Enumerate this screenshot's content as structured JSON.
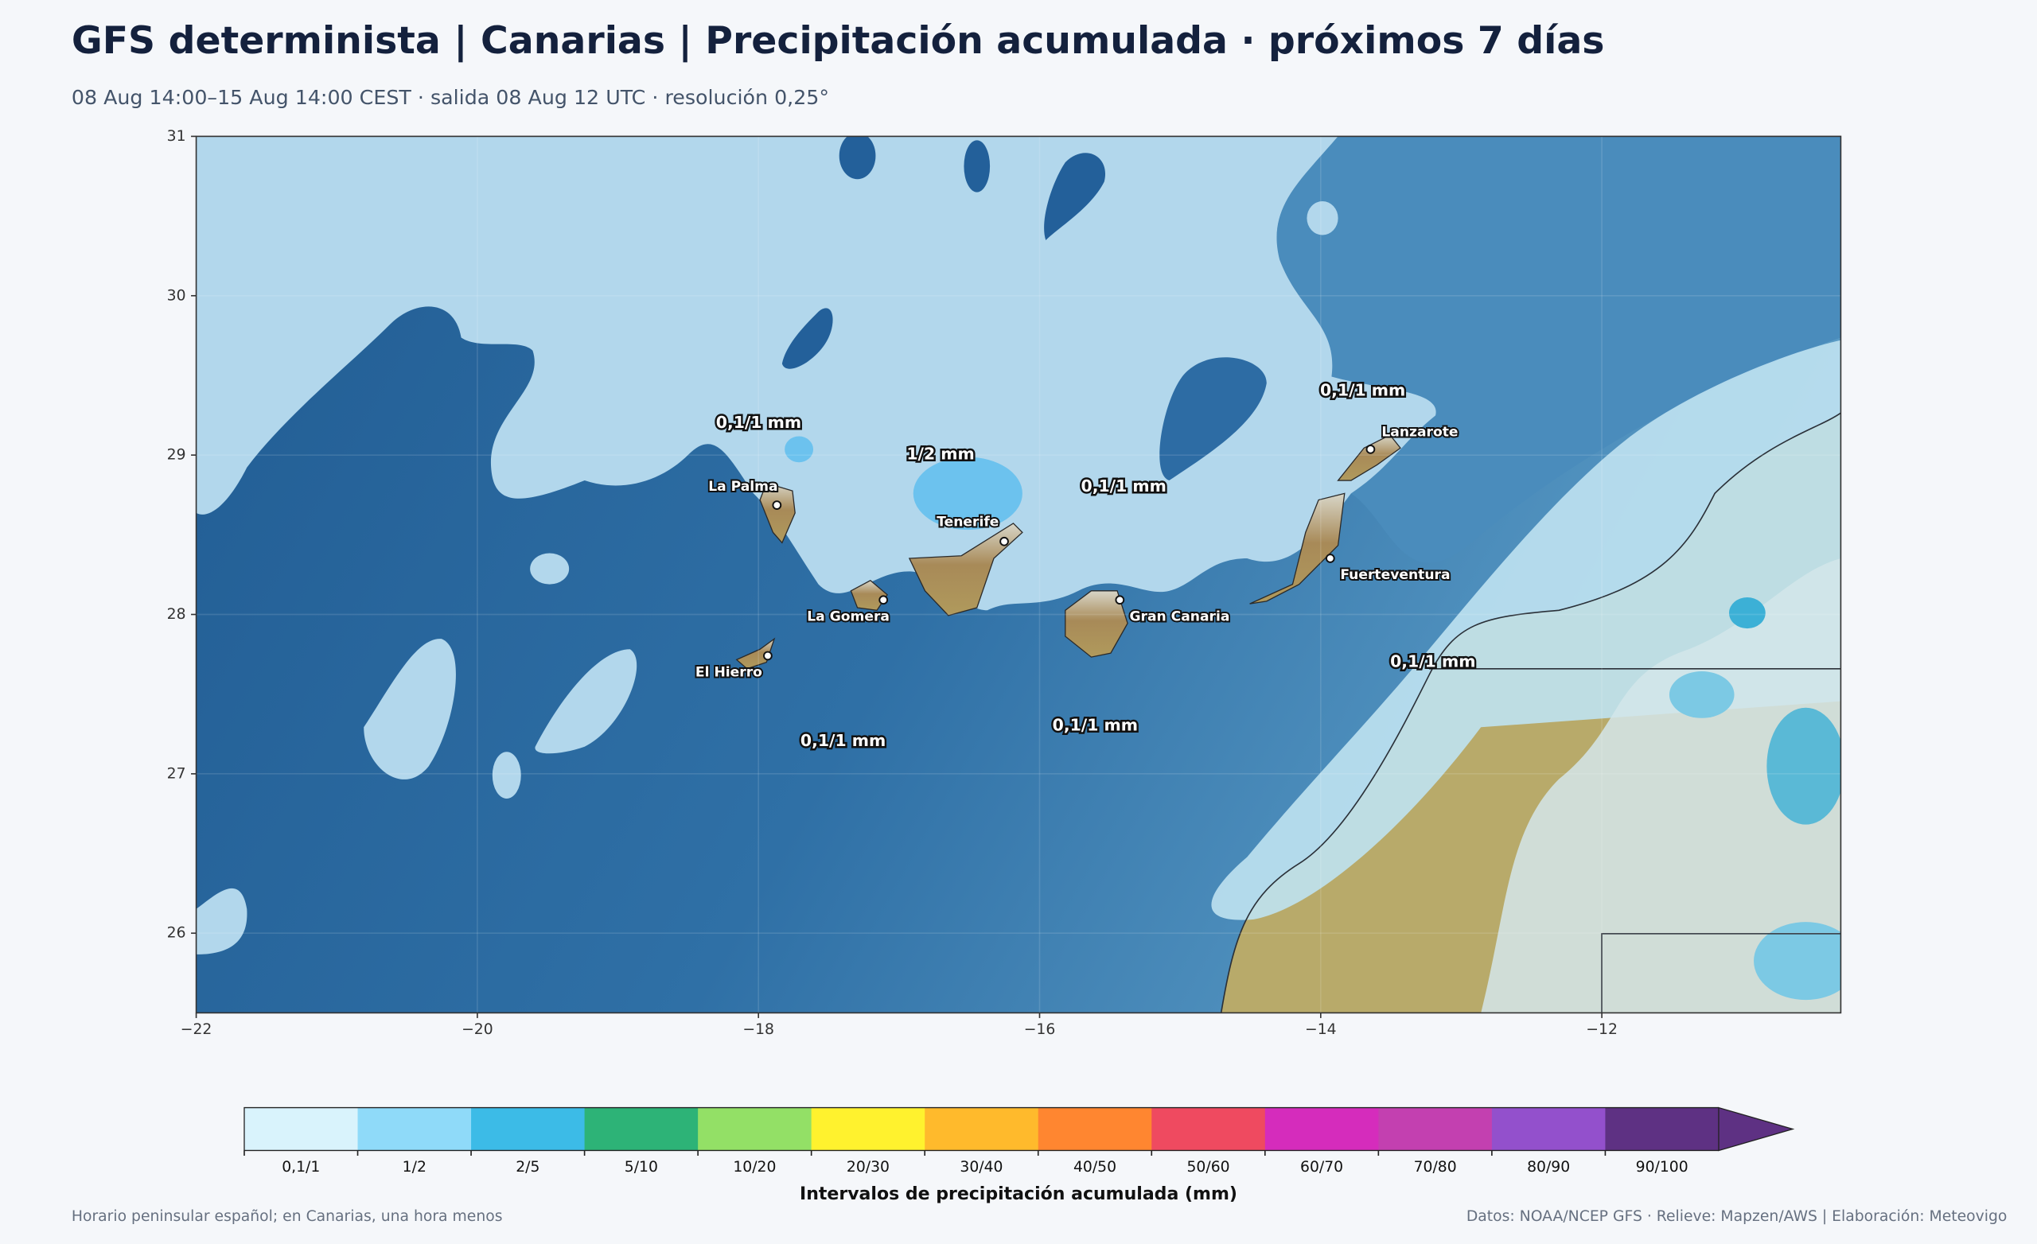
{
  "header": {
    "title": "GFS determinista | Canarias | Precipitación acumulada · próximos 7 días",
    "subtitle": "08 Aug 14:00–15 Aug 14:00 CEST · salida 08 Aug 12 UTC · resolución 0,25°"
  },
  "map": {
    "xlim": [
      -22,
      -10.3
    ],
    "ylim": [
      25.5,
      31
    ],
    "xticks": [
      {
        "value": -22,
        "label": "−22"
      },
      {
        "value": -20,
        "label": "−20"
      },
      {
        "value": -18,
        "label": "−18"
      },
      {
        "value": -16,
        "label": "−16"
      },
      {
        "value": -14,
        "label": "−14"
      },
      {
        "value": -12,
        "label": "−12"
      }
    ],
    "yticks": [
      26,
      27,
      28,
      29,
      30,
      31
    ],
    "islands": [
      {
        "name": "La Palma"
      },
      {
        "name": "Tenerife"
      },
      {
        "name": "La Gomera"
      },
      {
        "name": "El Hierro"
      },
      {
        "name": "Gran Canaria"
      },
      {
        "name": "Fuerteventura"
      },
      {
        "name": "Lanzarote"
      }
    ],
    "precip_labels": [
      "0,1/1 mm",
      "1/2 mm",
      "0,1/1 mm",
      "0,1/1 mm",
      "0,1/1 mm",
      "0,1/1 mm",
      "0,1/1 mm"
    ]
  },
  "legend": {
    "title": "Intervalos de precipitación acumulada (mm)",
    "items": [
      {
        "label": "0,1/1",
        "color": "#d9f3fc"
      },
      {
        "label": "1/2",
        "color": "#8fdaf9"
      },
      {
        "label": "2/5",
        "color": "#3cbbe7"
      },
      {
        "label": "5/10",
        "color": "#2db377"
      },
      {
        "label": "10/20",
        "color": "#93e066"
      },
      {
        "label": "20/30",
        "color": "#fff22e"
      },
      {
        "label": "30/40",
        "color": "#ffba2c"
      },
      {
        "label": "40/50",
        "color": "#ff8630"
      },
      {
        "label": "50/60",
        "color": "#ef4a60"
      },
      {
        "label": "60/70",
        "color": "#d52cbc"
      },
      {
        "label": "70/80",
        "color": "#c340b0"
      },
      {
        "label": "80/90",
        "color": "#9350cc"
      },
      {
        "label": "90/100",
        "color": "#5e3183"
      }
    ]
  },
  "footer": {
    "left": "Horario peninsular español; en Canarias, una hora menos",
    "right": "Datos: NOAA/NCEP GFS · Relieve: Mapzen/AWS | Elaboración: Meteovigo"
  }
}
